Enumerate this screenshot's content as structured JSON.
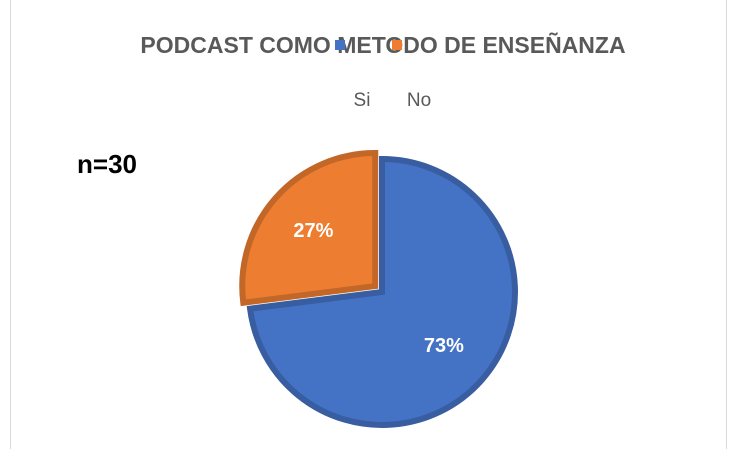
{
  "chart_data": {
    "type": "pie",
    "title": "PODCAST COMO METODO DE ENSEÑANZA",
    "annotation": "n=30",
    "categories": [
      "Si",
      "No"
    ],
    "values": [
      73,
      27
    ],
    "value_labels": [
      "73%",
      "27%"
    ],
    "colors": [
      "#4472c4",
      "#ed7d31"
    ],
    "legend": "top"
  }
}
